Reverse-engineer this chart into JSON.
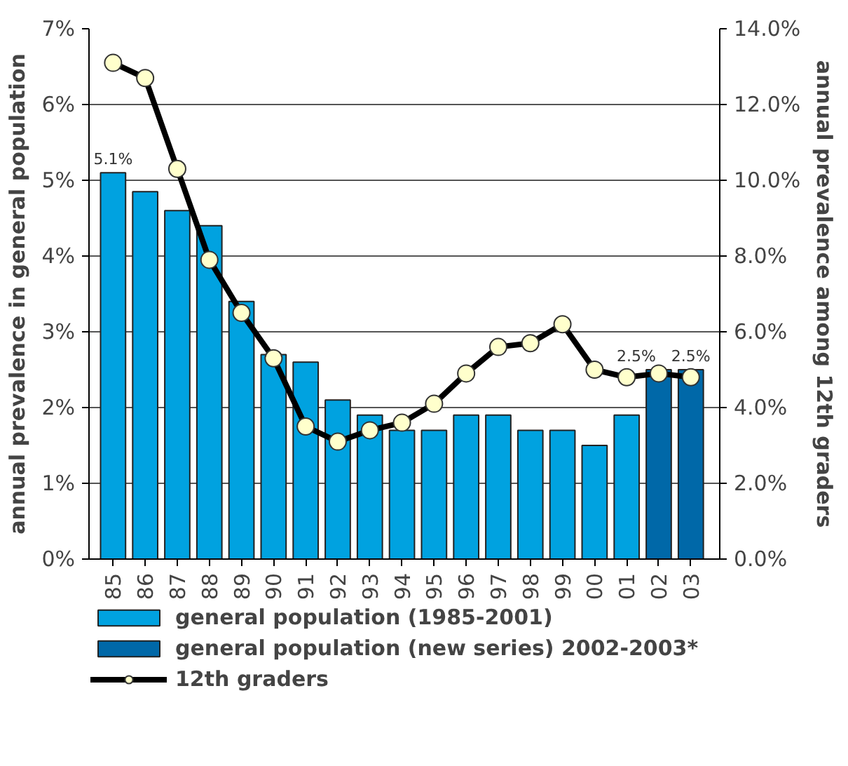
{
  "chart_data": {
    "type": "bar",
    "ylabel": "annual prevalence in general population",
    "y2label": "annual prevalence among 12th graders",
    "categories": [
      "85",
      "86",
      "87",
      "88",
      "89",
      "90",
      "91",
      "92",
      "93",
      "94",
      "95",
      "96",
      "97",
      "98",
      "99",
      "00",
      "01",
      "02",
      "03"
    ],
    "series": [
      {
        "name": "general population (1985-2001)",
        "color": "#00a2e0",
        "values": [
          5.1,
          4.85,
          4.6,
          4.4,
          3.4,
          2.7,
          2.6,
          2.1,
          1.9,
          1.7,
          1.7,
          1.9,
          1.9,
          1.7,
          1.7,
          1.5,
          1.9,
          null,
          null
        ],
        "value_labels": [
          "5.1%",
          null,
          null,
          null,
          null,
          null,
          null,
          null,
          null,
          null,
          null,
          null,
          null,
          null,
          null,
          null,
          null,
          null,
          null
        ]
      },
      {
        "name": "general population (new series) 2002-2003*",
        "color": "#0068a8",
        "values": [
          null,
          null,
          null,
          null,
          null,
          null,
          null,
          null,
          null,
          null,
          null,
          null,
          null,
          null,
          null,
          null,
          null,
          2.5,
          2.5
        ],
        "value_labels": [
          null,
          null,
          null,
          null,
          null,
          null,
          null,
          null,
          null,
          null,
          null,
          null,
          null,
          null,
          null,
          null,
          null,
          "2.5%",
          "2.5%"
        ]
      },
      {
        "name": "12th graders",
        "type": "line",
        "axis": "y2",
        "color": "#000000",
        "marker": "circle",
        "line_style": "solid",
        "values": [
          13.1,
          12.7,
          10.3,
          7.9,
          6.5,
          5.3,
          3.5,
          3.1,
          3.4,
          3.6,
          4.1,
          4.9,
          5.6,
          5.7,
          6.2,
          5.0,
          4.8,
          4.9,
          4.8
        ]
      }
    ],
    "ylim": [
      0,
      7
    ],
    "yticks": [
      {
        "value": 0,
        "label": "0%"
      },
      {
        "value": 1,
        "label": "1%"
      },
      {
        "value": 2,
        "label": "2%"
      },
      {
        "value": 3,
        "label": "3%"
      },
      {
        "value": 4,
        "label": "4%"
      },
      {
        "value": 5,
        "label": "5%"
      },
      {
        "value": 6,
        "label": "6%"
      },
      {
        "value": 7,
        "label": "7%"
      }
    ],
    "y2lim": [
      0,
      14
    ],
    "y2ticks": [
      {
        "value": 0,
        "label": "0.0%"
      },
      {
        "value": 2,
        "label": "2.0%"
      },
      {
        "value": 4,
        "label": "4.0%"
      },
      {
        "value": 6,
        "label": "6.0%"
      },
      {
        "value": 8,
        "label": "8.0%"
      },
      {
        "value": 10,
        "label": "10.0%"
      },
      {
        "value": 12,
        "label": "12.0%"
      },
      {
        "value": 14,
        "label": "14.0%"
      }
    ],
    "grid": "y",
    "legend": "bottom"
  }
}
